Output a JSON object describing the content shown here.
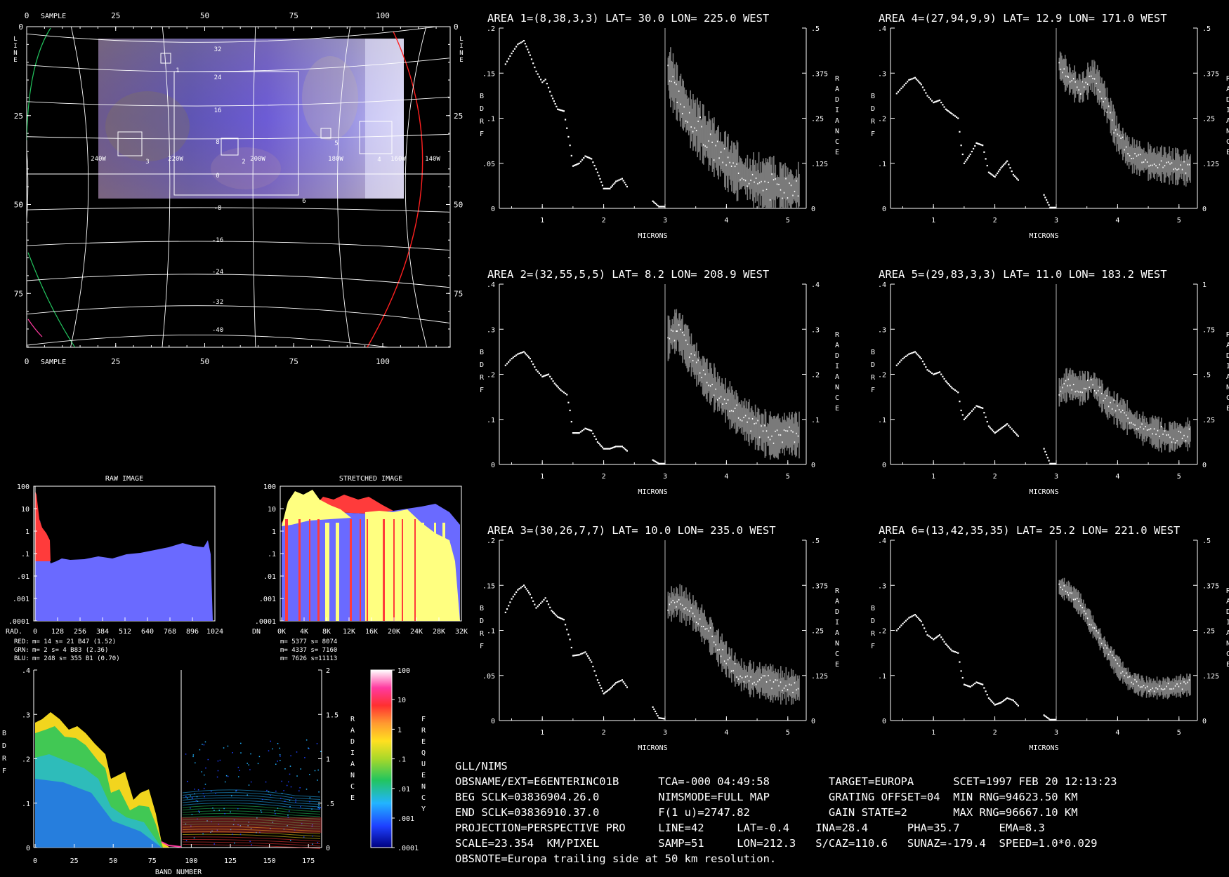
{
  "map": {
    "sample_label": "SAMPLE",
    "line_label": "LINE",
    "sample_ticks": [
      "0",
      "25",
      "50",
      "75",
      "100"
    ],
    "line_ticks": [
      "0",
      "25",
      "50",
      "75"
    ],
    "lat_labels": [
      "32",
      "24",
      "16",
      "8",
      "0",
      "-8",
      "-16",
      "-24",
      "-32",
      "-40"
    ],
    "lon_labels": [
      "240W",
      "220W",
      "200W",
      "180W",
      "160W",
      "140W"
    ],
    "area_numbers": [
      "1",
      "2",
      "3",
      "4",
      "5",
      "6"
    ]
  },
  "histograms": {
    "raw": {
      "title": "RAW IMAGE",
      "axis_label": "RAD.",
      "y_ticks": [
        "100",
        "10",
        "1",
        ".1",
        ".01",
        ".001",
        ".0001"
      ],
      "x_ticks": [
        "0",
        "128",
        "256",
        "384",
        "512",
        "640",
        "768",
        "896",
        "1024"
      ],
      "stats": [
        {
          "channel": "RED:",
          "text": "m=   14 s=   21 B47 (1.52)",
          "color": "#ff3b3b"
        },
        {
          "channel": "GRN:",
          "text": "m=    2 s=    4 B83 (2.36)",
          "color": "#ffffff"
        },
        {
          "channel": "BLU:",
          "text": "m=  248 s=  355 B1  (0.70)",
          "color": "#6a6aff"
        }
      ]
    },
    "stretched": {
      "title": "STRETCHED IMAGE",
      "axis_label": "DN",
      "y_ticks": [
        "100",
        "10",
        "1",
        ".1",
        ".01",
        ".001",
        ".0001"
      ],
      "x_ticks": [
        "0K",
        "4K",
        "8K",
        "12K",
        "16K",
        "20K",
        "24K",
        "28K",
        "32K"
      ],
      "stats": [
        "m= 5377 s= 8074",
        "m= 4337 s= 7160",
        "m= 7626 s=11113"
      ]
    }
  },
  "band_plot": {
    "ylabel": "BDRF",
    "y2label": "RADIANCE",
    "xlabel": "BAND NUMBER",
    "y_ticks": [
      ".4",
      ".3",
      ".2",
      ".1",
      "0"
    ],
    "y2_ticks": [
      "2",
      "1.5",
      "1",
      ".5",
      "0"
    ],
    "x_ticks": [
      "0",
      "25",
      "50",
      "75",
      "100",
      "125",
      "150",
      "175"
    ]
  },
  "color_bar": {
    "label": "FREQUENCY",
    "ticks": [
      "100",
      "10",
      "1",
      ".1",
      ".01",
      ".001",
      ".0001"
    ]
  },
  "chart_data": [
    {
      "type": "line",
      "title": "AREA 1=(8,38,3,3) LAT=  30.0 LON= 225.0 WEST",
      "xlabel": "MICRONS",
      "ylabel": "BDRF",
      "y2label": "RADIANCE",
      "xlim": [
        0.3,
        5.3
      ],
      "ylim": [
        0,
        0.2
      ],
      "y2lim": [
        0,
        0.5
      ],
      "y_ticks": [
        ".2",
        ".15",
        ".1",
        ".05",
        "0"
      ],
      "y2_ticks": [
        ".5",
        ".375",
        ".25",
        ".125",
        "0"
      ],
      "x_ticks": [
        "1",
        "2",
        "3",
        "4",
        "5"
      ],
      "bdrf": [
        [
          0.4,
          0.16
        ],
        [
          0.5,
          0.172
        ],
        [
          0.6,
          0.182
        ],
        [
          0.7,
          0.186
        ],
        [
          0.8,
          0.17
        ],
        [
          0.9,
          0.152
        ],
        [
          1.0,
          0.14
        ],
        [
          1.05,
          0.143
        ],
        [
          1.15,
          0.125
        ],
        [
          1.25,
          0.11
        ],
        [
          1.35,
          0.108
        ],
        [
          1.45,
          0.07
        ],
        [
          1.5,
          0.047
        ],
        [
          1.6,
          0.05
        ],
        [
          1.7,
          0.058
        ],
        [
          1.8,
          0.055
        ],
        [
          1.9,
          0.04
        ],
        [
          2.0,
          0.022
        ],
        [
          2.1,
          0.022
        ],
        [
          2.2,
          0.03
        ],
        [
          2.3,
          0.033
        ],
        [
          2.4,
          0.022
        ],
        [
          2.8,
          0.008
        ],
        [
          2.9,
          0.002
        ],
        [
          3.0,
          0.002
        ]
      ],
      "radiance": [
        [
          3.05,
          0.38
        ],
        [
          3.2,
          0.32
        ],
        [
          3.4,
          0.25
        ],
        [
          3.6,
          0.21
        ],
        [
          3.8,
          0.17
        ],
        [
          4.0,
          0.13
        ],
        [
          4.2,
          0.1
        ],
        [
          4.4,
          0.08
        ],
        [
          4.6,
          0.065
        ],
        [
          4.8,
          0.06
        ],
        [
          5.0,
          0.055
        ],
        [
          5.2,
          0.05
        ]
      ],
      "noise": 0.35
    },
    {
      "type": "line",
      "title": "AREA 4=(27,94,9,9) LAT=  12.9 LON= 171.0 WEST",
      "xlabel": "MICRONS",
      "ylabel": "BDRF",
      "y2label": "RADIANCE",
      "xlim": [
        0.3,
        5.3
      ],
      "ylim": [
        0,
        0.4
      ],
      "y2lim": [
        0,
        0.5
      ],
      "y_ticks": [
        ".4",
        ".3",
        ".2",
        ".1",
        "0"
      ],
      "y2_ticks": [
        ".5",
        ".375",
        ".25",
        ".125",
        "0"
      ],
      "x_ticks": [
        "1",
        "2",
        "3",
        "4",
        "5"
      ],
      "bdrf": [
        [
          0.4,
          0.255
        ],
        [
          0.5,
          0.27
        ],
        [
          0.6,
          0.285
        ],
        [
          0.7,
          0.29
        ],
        [
          0.8,
          0.275
        ],
        [
          0.9,
          0.25
        ],
        [
          1.0,
          0.235
        ],
        [
          1.1,
          0.24
        ],
        [
          1.2,
          0.22
        ],
        [
          1.3,
          0.21
        ],
        [
          1.4,
          0.2
        ],
        [
          1.45,
          0.14
        ],
        [
          1.5,
          0.1
        ],
        [
          1.6,
          0.12
        ],
        [
          1.7,
          0.145
        ],
        [
          1.8,
          0.14
        ],
        [
          1.9,
          0.08
        ],
        [
          2.0,
          0.07
        ],
        [
          2.1,
          0.09
        ],
        [
          2.2,
          0.105
        ],
        [
          2.3,
          0.075
        ],
        [
          2.4,
          0.06
        ],
        [
          2.8,
          0.03
        ],
        [
          2.9,
          0.002
        ],
        [
          3.0,
          0.002
        ]
      ],
      "radiance": [
        [
          3.05,
          0.4
        ],
        [
          3.2,
          0.36
        ],
        [
          3.4,
          0.33
        ],
        [
          3.6,
          0.37
        ],
        [
          3.8,
          0.3
        ],
        [
          4.0,
          0.2
        ],
        [
          4.2,
          0.15
        ],
        [
          4.4,
          0.135
        ],
        [
          4.6,
          0.125
        ],
        [
          4.8,
          0.12
        ],
        [
          5.0,
          0.115
        ],
        [
          5.2,
          0.11
        ]
      ],
      "noise": 0.22
    },
    {
      "type": "line",
      "title": "AREA 2=(32,55,5,5) LAT=   8.2 LON= 208.9 WEST",
      "xlabel": "MICRONS",
      "ylabel": "BDRF",
      "y2label": "RADIANCE",
      "xlim": [
        0.3,
        5.3
      ],
      "ylim": [
        0,
        0.4
      ],
      "y2lim": [
        0,
        0.4
      ],
      "y_ticks": [
        ".4",
        ".3",
        ".2",
        ".1",
        "0"
      ],
      "y2_ticks": [
        ".4",
        ".3",
        ".2",
        ".1",
        "0"
      ],
      "x_ticks": [
        "1",
        "2",
        "3",
        "4",
        "5"
      ],
      "bdrf": [
        [
          0.4,
          0.22
        ],
        [
          0.5,
          0.235
        ],
        [
          0.6,
          0.245
        ],
        [
          0.7,
          0.25
        ],
        [
          0.8,
          0.235
        ],
        [
          0.9,
          0.21
        ],
        [
          1.0,
          0.195
        ],
        [
          1.1,
          0.2
        ],
        [
          1.2,
          0.18
        ],
        [
          1.3,
          0.165
        ],
        [
          1.4,
          0.155
        ],
        [
          1.45,
          0.12
        ],
        [
          1.5,
          0.07
        ],
        [
          1.6,
          0.07
        ],
        [
          1.7,
          0.08
        ],
        [
          1.8,
          0.075
        ],
        [
          1.9,
          0.05
        ],
        [
          2.0,
          0.035
        ],
        [
          2.1,
          0.035
        ],
        [
          2.2,
          0.04
        ],
        [
          2.3,
          0.04
        ],
        [
          2.4,
          0.028
        ],
        [
          2.8,
          0.01
        ],
        [
          2.9,
          0.002
        ],
        [
          3.0,
          0.002
        ]
      ],
      "radiance": [
        [
          3.05,
          0.28
        ],
        [
          3.2,
          0.3
        ],
        [
          3.4,
          0.25
        ],
        [
          3.6,
          0.2
        ],
        [
          3.8,
          0.17
        ],
        [
          4.0,
          0.14
        ],
        [
          4.2,
          0.11
        ],
        [
          4.4,
          0.09
        ],
        [
          4.6,
          0.07
        ],
        [
          4.8,
          0.06
        ],
        [
          5.0,
          0.07
        ],
        [
          5.2,
          0.065
        ]
      ],
      "noise": 0.28
    },
    {
      "type": "line",
      "title": "AREA 5=(29,83,3,3) LAT=  11.0 LON= 183.2 WEST",
      "xlabel": "MICRONS",
      "ylabel": "BDRF",
      "y2label": "RADIANCE",
      "xlim": [
        0.3,
        5.3
      ],
      "ylim": [
        0,
        0.4
      ],
      "y2lim": [
        0,
        1
      ],
      "y_ticks": [
        ".4",
        ".3",
        ".2",
        ".1",
        "0"
      ],
      "y2_ticks": [
        "1",
        ".75",
        ".5",
        ".25",
        "0"
      ],
      "x_ticks": [
        "1",
        "2",
        "3",
        "4",
        "5"
      ],
      "bdrf": [
        [
          0.4,
          0.22
        ],
        [
          0.5,
          0.235
        ],
        [
          0.6,
          0.245
        ],
        [
          0.7,
          0.25
        ],
        [
          0.8,
          0.235
        ],
        [
          0.9,
          0.21
        ],
        [
          1.0,
          0.2
        ],
        [
          1.1,
          0.205
        ],
        [
          1.2,
          0.185
        ],
        [
          1.3,
          0.17
        ],
        [
          1.4,
          0.16
        ],
        [
          1.45,
          0.12
        ],
        [
          1.5,
          0.1
        ],
        [
          1.6,
          0.115
        ],
        [
          1.7,
          0.13
        ],
        [
          1.8,
          0.125
        ],
        [
          1.9,
          0.085
        ],
        [
          2.0,
          0.07
        ],
        [
          2.1,
          0.08
        ],
        [
          2.2,
          0.09
        ],
        [
          2.3,
          0.075
        ],
        [
          2.4,
          0.06
        ],
        [
          2.8,
          0.035
        ],
        [
          2.9,
          0.002
        ],
        [
          3.0,
          0.002
        ]
      ],
      "radiance": [
        [
          3.05,
          0.4
        ],
        [
          3.2,
          0.45
        ],
        [
          3.4,
          0.42
        ],
        [
          3.6,
          0.45
        ],
        [
          3.8,
          0.35
        ],
        [
          4.0,
          0.3
        ],
        [
          4.2,
          0.25
        ],
        [
          4.4,
          0.2
        ],
        [
          4.6,
          0.18
        ],
        [
          4.8,
          0.15
        ],
        [
          5.0,
          0.16
        ],
        [
          5.2,
          0.17
        ]
      ],
      "noise": 0.2
    },
    {
      "type": "line",
      "title": "AREA 3=(30,26,7,7) LAT=  10.0 LON= 235.0 WEST",
      "xlabel": "MICRONS",
      "ylabel": "BDRF",
      "y2label": "RADIANCE",
      "xlim": [
        0.3,
        5.3
      ],
      "ylim": [
        0,
        0.2
      ],
      "y2lim": [
        0,
        0.5
      ],
      "y_ticks": [
        ".2",
        ".15",
        ".1",
        ".05",
        "0"
      ],
      "y2_ticks": [
        ".5",
        ".375",
        ".25",
        ".125",
        "0"
      ],
      "x_ticks": [
        "1",
        "2",
        "3",
        "4",
        "5"
      ],
      "bdrf": [
        [
          0.4,
          0.12
        ],
        [
          0.5,
          0.135
        ],
        [
          0.6,
          0.145
        ],
        [
          0.7,
          0.15
        ],
        [
          0.8,
          0.14
        ],
        [
          0.9,
          0.125
        ],
        [
          1.0,
          0.132
        ],
        [
          1.05,
          0.136
        ],
        [
          1.15,
          0.122
        ],
        [
          1.25,
          0.115
        ],
        [
          1.35,
          0.112
        ],
        [
          1.45,
          0.09
        ],
        [
          1.5,
          0.072
        ],
        [
          1.6,
          0.073
        ],
        [
          1.7,
          0.076
        ],
        [
          1.8,
          0.065
        ],
        [
          1.9,
          0.045
        ],
        [
          2.0,
          0.03
        ],
        [
          2.1,
          0.035
        ],
        [
          2.2,
          0.042
        ],
        [
          2.3,
          0.045
        ],
        [
          2.4,
          0.035
        ],
        [
          2.8,
          0.015
        ],
        [
          2.9,
          0.003
        ],
        [
          3.0,
          0.002
        ]
      ],
      "radiance": [
        [
          3.05,
          0.32
        ],
        [
          3.2,
          0.33
        ],
        [
          3.4,
          0.31
        ],
        [
          3.6,
          0.27
        ],
        [
          3.8,
          0.22
        ],
        [
          4.0,
          0.17
        ],
        [
          4.2,
          0.13
        ],
        [
          4.4,
          0.115
        ],
        [
          4.6,
          0.11
        ],
        [
          4.8,
          0.1
        ],
        [
          5.0,
          0.095
        ],
        [
          5.2,
          0.09
        ]
      ],
      "noise": 0.22
    },
    {
      "type": "line",
      "title": "AREA 6=(13,42,35,35) LAT=  25.2 LON= 221.0 WEST",
      "xlabel": "MICRONS",
      "ylabel": "BDRF",
      "y2label": "RADIANCE",
      "xlim": [
        0.3,
        5.3
      ],
      "ylim": [
        0,
        0.4
      ],
      "y2lim": [
        0,
        0.5
      ],
      "y_ticks": [
        ".4",
        ".3",
        ".2",
        ".1",
        "0"
      ],
      "y2_ticks": [
        ".5",
        ".375",
        ".25",
        ".125",
        "0"
      ],
      "x_ticks": [
        "1",
        "2",
        "3",
        "4",
        "5"
      ],
      "bdrf": [
        [
          0.4,
          0.2
        ],
        [
          0.5,
          0.215
        ],
        [
          0.6,
          0.228
        ],
        [
          0.7,
          0.235
        ],
        [
          0.8,
          0.22
        ],
        [
          0.9,
          0.19
        ],
        [
          1.0,
          0.18
        ],
        [
          1.1,
          0.19
        ],
        [
          1.2,
          0.17
        ],
        [
          1.3,
          0.155
        ],
        [
          1.4,
          0.15
        ],
        [
          1.45,
          0.11
        ],
        [
          1.5,
          0.08
        ],
        [
          1.6,
          0.075
        ],
        [
          1.7,
          0.085
        ],
        [
          1.8,
          0.08
        ],
        [
          1.9,
          0.05
        ],
        [
          2.0,
          0.035
        ],
        [
          2.1,
          0.04
        ],
        [
          2.2,
          0.05
        ],
        [
          2.3,
          0.045
        ],
        [
          2.4,
          0.03
        ],
        [
          2.8,
          0.012
        ],
        [
          2.9,
          0.002
        ],
        [
          3.0,
          0.002
        ]
      ],
      "radiance": [
        [
          3.05,
          0.37
        ],
        [
          3.2,
          0.36
        ],
        [
          3.4,
          0.32
        ],
        [
          3.6,
          0.26
        ],
        [
          3.8,
          0.2
        ],
        [
          4.0,
          0.15
        ],
        [
          4.2,
          0.11
        ],
        [
          4.4,
          0.095
        ],
        [
          4.6,
          0.09
        ],
        [
          4.8,
          0.09
        ],
        [
          5.0,
          0.095
        ],
        [
          5.2,
          0.1
        ]
      ],
      "noise": 0.14
    }
  ],
  "metadata_lines": [
    "GLL/NIMS",
    "OBSNAME/EXT=E6ENTERINC01B      TCA=-000 04:49:58         TARGET=EUROPA      SCET=1997 FEB 20 12:13:23",
    "BEG SCLK=03836904.26.0         NIMSMODE=FULL MAP         GRATING OFFSET=04  MIN RNG=94623.50 KM",
    "END SCLK=03836910.37.0         F(1 u)=2747.82            GAIN STATE=2       MAX RNG=96667.10 KM",
    "PROJECTION=PERSPECTIVE PRO     LINE=42     LAT=-0.4    INA=28.4      PHA=35.7      EMA=8.3",
    "SCALE=23.354  KM/PIXEL         SAMP=51     LON=212.3   S/CAZ=110.6   SUNAZ=-179.4  SPEED=1.0*0.029",
    "OBSNOTE=Europa trailing side at 50 km resolution."
  ],
  "colors": {
    "white": "#ffffff",
    "gray": "#9a9a9a",
    "red": "#ff3b3b",
    "blue": "#6a6aff",
    "yellow": "#ffff80",
    "green": "#22c55e"
  }
}
